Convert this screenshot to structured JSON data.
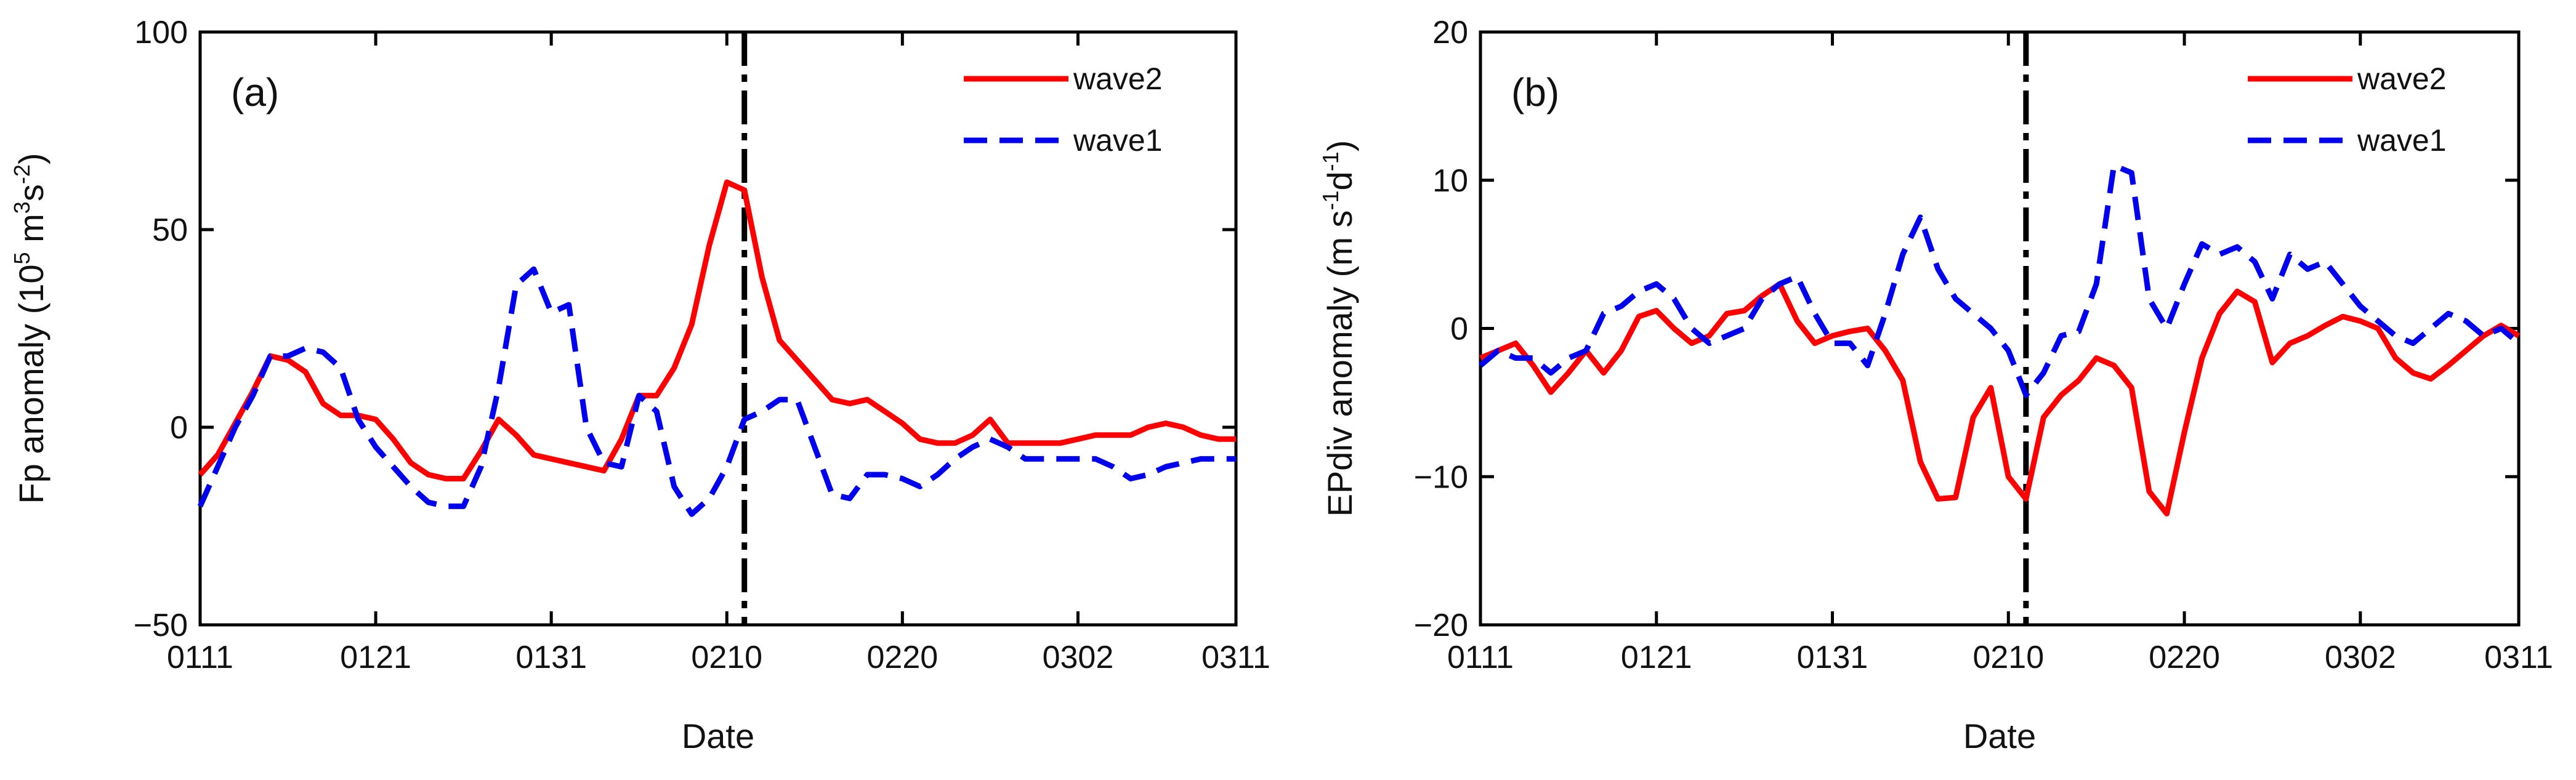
{
  "chart_data": [
    {
      "type": "line",
      "panel_label": "(a)",
      "xlabel": "Date",
      "ylabel_parts": [
        "Fp anomaly (10",
        "5",
        " m",
        "3",
        "s",
        "-2",
        ")"
      ],
      "x_tick_labels": [
        "0111",
        "0121",
        "0131",
        "0210",
        "0220",
        "0302",
        "0311"
      ],
      "x_tick_values": [
        0,
        10,
        20,
        30,
        40,
        50,
        59
      ],
      "xlim": [
        0,
        59
      ],
      "ylim": [
        -50,
        100
      ],
      "y_ticks": [
        -50,
        0,
        50,
        100
      ],
      "y_tick_labels": [
        "−50",
        "0",
        "50",
        "100"
      ],
      "reference_line_x": 31,
      "legend_position": "top-right",
      "series": [
        {
          "name": "wave2",
          "color": "#ff0000",
          "style": "solid",
          "x": [
            0,
            1,
            2,
            3,
            4,
            5,
            6,
            7,
            8,
            9,
            10,
            11,
            12,
            13,
            14,
            15,
            16,
            17,
            18,
            19,
            20,
            21,
            22,
            23,
            24,
            25,
            26,
            27,
            28,
            29,
            30,
            31,
            32,
            33,
            34,
            35,
            36,
            37,
            38,
            39,
            40,
            41,
            42,
            43,
            44,
            45,
            46,
            47,
            48,
            49,
            50,
            51,
            52,
            53,
            54,
            55,
            56,
            57,
            58,
            59
          ],
          "values": [
            -12,
            -7,
            1,
            9,
            18,
            17,
            14,
            6,
            3,
            3,
            2,
            -3,
            -9,
            -12,
            -13,
            -13,
            -6,
            2,
            -2,
            -7,
            -8,
            -9,
            -10,
            -11,
            -3,
            8,
            8,
            15,
            26,
            46,
            62,
            60,
            38,
            22,
            17,
            12,
            7,
            6,
            7,
            4,
            1,
            -3,
            -4,
            -4,
            -2,
            2,
            -4,
            -4,
            -4,
            -4,
            -3,
            -2,
            -2,
            -2,
            0,
            1,
            0,
            -2,
            -3,
            -3
          ]
        },
        {
          "name": "wave1",
          "color": "#0000ee",
          "style": "dashed",
          "x": [
            0,
            1,
            2,
            3,
            4,
            5,
            6,
            7,
            8,
            9,
            10,
            11,
            12,
            13,
            14,
            15,
            16,
            17,
            18,
            19,
            20,
            21,
            22,
            23,
            24,
            25,
            26,
            27,
            28,
            29,
            30,
            31,
            32,
            33,
            34,
            35,
            36,
            37,
            38,
            39,
            40,
            41,
            42,
            43,
            44,
            45,
            46,
            47,
            48,
            49,
            50,
            51,
            52,
            53,
            54,
            55,
            56,
            57,
            58,
            59
          ],
          "values": [
            -20,
            -10,
            0,
            8,
            18,
            18,
            20,
            19,
            15,
            2,
            -5,
            -10,
            -15,
            -19,
            -20,
            -20,
            -10,
            10,
            36,
            40,
            29,
            31,
            0,
            -9,
            -10,
            8,
            4,
            -15,
            -22,
            -18,
            -10,
            2,
            4,
            7,
            7,
            -5,
            -17,
            -18,
            -12,
            -12,
            -13,
            -15,
            -12,
            -8,
            -5,
            -3,
            -5,
            -8,
            -8,
            -8,
            -8,
            -8,
            -10,
            -13,
            -12,
            -10,
            -9,
            -8,
            -8,
            -8
          ]
        }
      ]
    },
    {
      "type": "line",
      "panel_label": "(b)",
      "xlabel": "Date",
      "ylabel_parts": [
        "EPdiv anomaly (m s",
        "-1",
        "d",
        "-1",
        ")"
      ],
      "x_tick_labels": [
        "0111",
        "0121",
        "0131",
        "0210",
        "0220",
        "0302",
        "0311"
      ],
      "x_tick_values": [
        0,
        10,
        20,
        30,
        40,
        50,
        59
      ],
      "xlim": [
        0,
        59
      ],
      "ylim": [
        -20,
        20
      ],
      "y_ticks": [
        -20,
        -10,
        0,
        10,
        20
      ],
      "y_tick_labels": [
        "−20",
        "−10",
        "0",
        "10",
        "20"
      ],
      "reference_line_x": 31,
      "legend_position": "top-right",
      "series": [
        {
          "name": "wave2",
          "color": "#ff0000",
          "style": "solid",
          "x": [
            0,
            1,
            2,
            3,
            4,
            5,
            6,
            7,
            8,
            9,
            10,
            11,
            12,
            13,
            14,
            15,
            16,
            17,
            18,
            19,
            20,
            21,
            22,
            23,
            24,
            25,
            26,
            27,
            28,
            29,
            30,
            31,
            32,
            33,
            34,
            35,
            36,
            37,
            38,
            39,
            40,
            41,
            42,
            43,
            44,
            45,
            46,
            47,
            48,
            49,
            50,
            51,
            52,
            53,
            54,
            55,
            56,
            57,
            58,
            59
          ],
          "values": [
            -2,
            -1.5,
            -1,
            -2.5,
            -4.3,
            -3,
            -1.5,
            -3,
            -1.5,
            0.8,
            1.2,
            0,
            -1,
            -0.5,
            1,
            1.2,
            2.2,
            3,
            0.5,
            -1,
            -0.5,
            -0.2,
            0,
            -1.5,
            -3.5,
            -9,
            -11.5,
            -11.4,
            -6,
            -4,
            -10,
            -11.5,
            -6,
            -4.5,
            -3.5,
            -2,
            -2.5,
            -4,
            -11,
            -12.5,
            -7,
            -2,
            1,
            2.5,
            1.8,
            -2.3,
            -1,
            -0.5,
            0.2,
            0.8,
            0.5,
            0,
            -2,
            -3,
            -3.4,
            -2.5,
            -1.5,
            -0.5,
            0.2,
            -0.5
          ]
        },
        {
          "name": "wave1",
          "color": "#0000ee",
          "style": "dashed",
          "x": [
            0,
            1,
            2,
            3,
            4,
            5,
            6,
            7,
            8,
            9,
            10,
            11,
            12,
            13,
            14,
            15,
            16,
            17,
            18,
            19,
            20,
            21,
            22,
            23,
            24,
            25,
            26,
            27,
            28,
            29,
            30,
            31,
            32,
            33,
            34,
            35,
            36,
            37,
            38,
            39,
            40,
            41,
            42,
            43,
            44,
            45,
            46,
            47,
            48,
            49,
            50,
            51,
            52,
            53,
            54,
            55,
            56,
            57,
            58,
            59
          ],
          "values": [
            -2.5,
            -1.5,
            -2,
            -2,
            -3,
            -2,
            -1.5,
            1,
            1.5,
            2.5,
            3,
            2,
            0,
            -1,
            -0.5,
            0,
            2,
            3,
            3.5,
            1,
            -1,
            -1,
            -2.5,
            1,
            5,
            7.5,
            4,
            2,
            1,
            0,
            -1.5,
            -4.5,
            -3,
            -0.5,
            -0.2,
            3,
            11,
            10.5,
            2,
            0,
            3,
            5.7,
            5,
            5.5,
            4.5,
            2,
            5,
            4,
            4.5,
            3,
            1.5,
            0.5,
            -0.5,
            -1,
            0,
            1,
            0.5,
            -0.5,
            0,
            -1
          ]
        }
      ]
    }
  ]
}
